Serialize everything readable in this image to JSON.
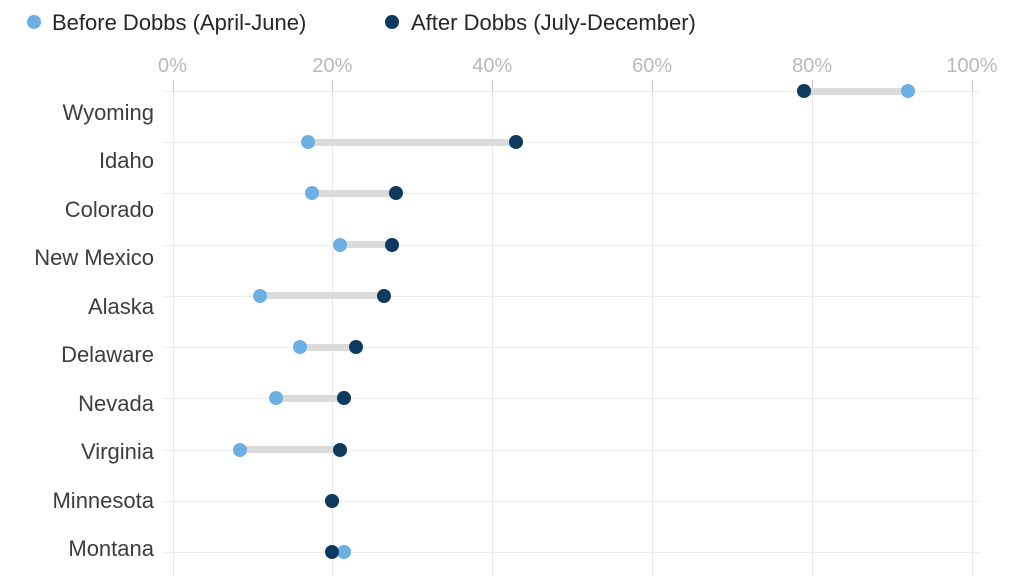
{
  "legend": {
    "items": [
      {
        "label": "Before Dobbs (April-June)",
        "color": "#6cafe2",
        "icon": "circle-icon"
      },
      {
        "label": "After Dobbs (July-December)",
        "color": "#0e3a5f",
        "icon": "circle-icon"
      }
    ]
  },
  "chart_data": {
    "type": "scatter",
    "variant": "dumbbell-dot-plot",
    "title": "",
    "xlabel": "",
    "ylabel": "",
    "xlim": [
      0,
      100
    ],
    "grid": true,
    "legend_position": "top-left",
    "x_tick_values": [
      0,
      20,
      40,
      60,
      80,
      100
    ],
    "x_tick_labels": [
      "0%",
      "20%",
      "40%",
      "60%",
      "80%",
      "100%"
    ],
    "categories": [
      "Wyoming",
      "Idaho",
      "Colorado",
      "New Mexico",
      "Alaska",
      "Delaware",
      "Nevada",
      "Virginia",
      "Minnesota",
      "Montana"
    ],
    "series": [
      {
        "name": "Before Dobbs (April-June)",
        "color": "#6cafe2",
        "values": [
          92,
          17,
          17.5,
          21,
          11,
          16,
          13,
          8.5,
          20,
          21.5
        ]
      },
      {
        "name": "After Dobbs (July-December)",
        "color": "#0e3a5f",
        "values": [
          79,
          43,
          28,
          27.5,
          26.5,
          23,
          21.5,
          21,
          20,
          20
        ]
      }
    ],
    "connector_color": "#dbdbdb",
    "gridline_color": "#ededed",
    "axis_tick_label_color": "#b9b9b9",
    "category_label_color": "#3d3d3d"
  }
}
